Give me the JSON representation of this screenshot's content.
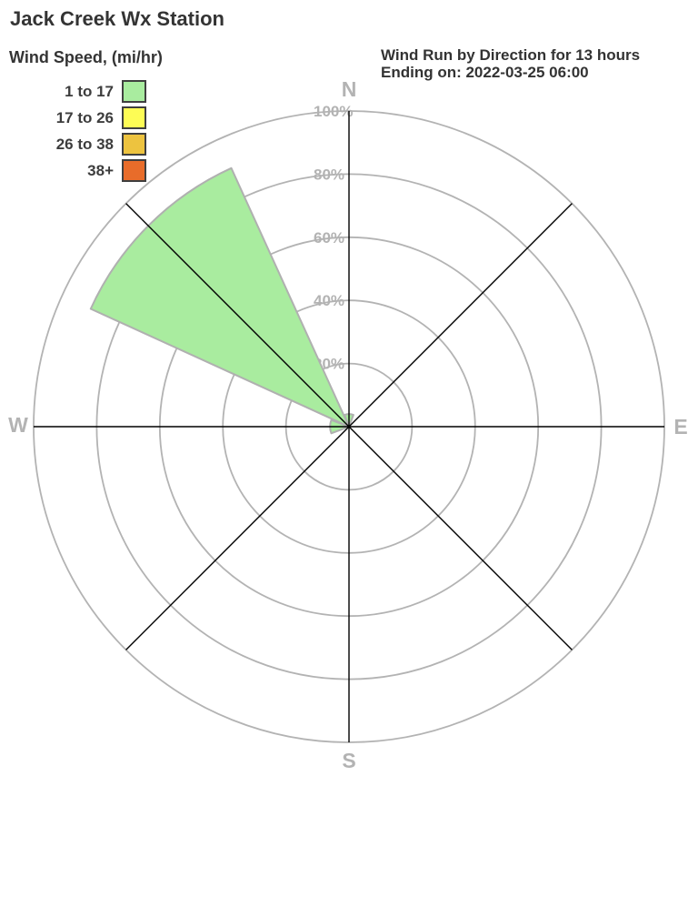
{
  "title": "Jack Creek Wx Station",
  "legend": {
    "title": "Wind Speed, (mi/hr)",
    "items": [
      {
        "label": "1 to 17",
        "color": "#a9ec9f"
      },
      {
        "label": "17 to 26",
        "color": "#fdfc55"
      },
      {
        "label": "26 to 38",
        "color": "#edc33f"
      },
      {
        "label": "38+",
        "color": "#e86c2a"
      }
    ]
  },
  "chart_header": {
    "line1": "Wind Run by Direction for 13 hours",
    "line2": "Ending on: 2022-03-25 06:00"
  },
  "chart_data": {
    "type": "windrose-polar-bar",
    "title": "Wind Run by Direction for 13 hours Ending on: 2022-03-25 06:00",
    "directions": [
      "N",
      "NE",
      "E",
      "SE",
      "S",
      "SW",
      "W",
      "NW"
    ],
    "direction_angles_deg": [
      0,
      45,
      90,
      135,
      180,
      225,
      270,
      315
    ],
    "sector_width_deg": 41,
    "series": [
      {
        "name": "1 to 17",
        "color": "#a9ec9f",
        "values": [
          4,
          0,
          0,
          0,
          0,
          0,
          6,
          90
        ]
      },
      {
        "name": "17 to 26",
        "color": "#fdfc55",
        "values": [
          0,
          0,
          0,
          0,
          0,
          0,
          0,
          0
        ]
      },
      {
        "name": "26 to 38",
        "color": "#edc33f",
        "values": [
          0,
          0,
          0,
          0,
          0,
          0,
          0,
          0
        ]
      },
      {
        "name": "38+",
        "color": "#e86c2a",
        "values": [
          0,
          0,
          0,
          0,
          0,
          0,
          0,
          0
        ]
      }
    ],
    "radial_axis": {
      "range": [
        0,
        100
      ],
      "ticks": [
        20,
        40,
        60,
        80,
        100
      ],
      "tick_labels": [
        "20%",
        "40%",
        "60%",
        "80%",
        "100%"
      ]
    },
    "compass_labels": {
      "n": "N",
      "e": "E",
      "s": "S",
      "w": "W"
    },
    "grid_color": "#b3b3b3",
    "spoke_color": "#000000",
    "axis_label_color": "#b3b3b3",
    "wedge_stroke_color": "#b0b0b0"
  }
}
